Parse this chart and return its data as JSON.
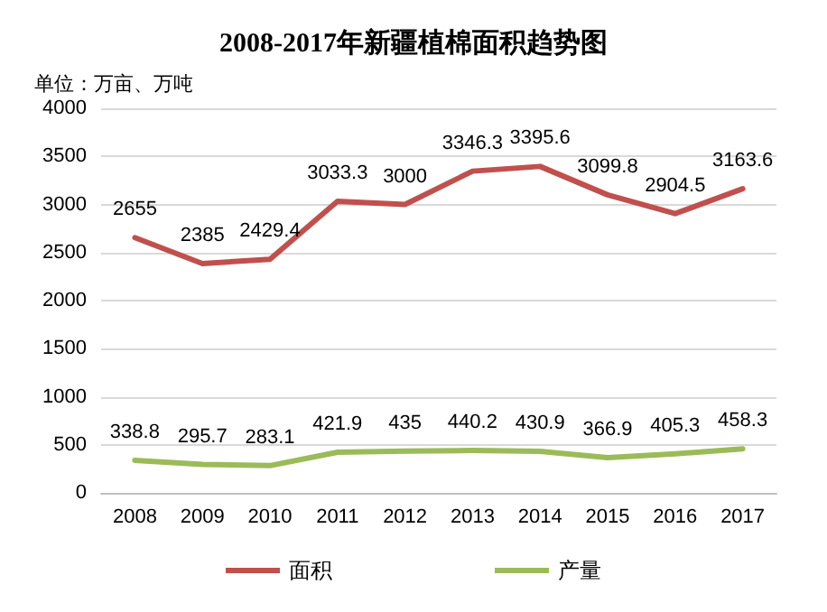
{
  "chart_data": {
    "type": "line",
    "title": "2008-2017年新疆植棉面积趋势图",
    "subtitle": "单位：万亩、万吨",
    "categories": [
      "2008",
      "2009",
      "2010",
      "2011",
      "2012",
      "2013",
      "2014",
      "2015",
      "2016",
      "2017"
    ],
    "series": [
      {
        "name": "面积",
        "color": "#c0504d",
        "values": [
          2655,
          2385,
          2429.4,
          3033.3,
          3000,
          3346.3,
          3395.6,
          3099.8,
          2904.5,
          3163.6
        ]
      },
      {
        "name": "产量",
        "color": "#9bbb59",
        "values": [
          338.8,
          295.7,
          283.1,
          421.9,
          435,
          440.2,
          430.9,
          366.9,
          405.3,
          458.3
        ]
      }
    ],
    "ylim": [
      0,
      4000
    ],
    "yticks": [
      0,
      500,
      1000,
      1500,
      2000,
      2500,
      3000,
      3500,
      4000
    ],
    "grid": "y",
    "legend": "bottom",
    "data_labels": true,
    "marker": "none",
    "line_style": "solid"
  }
}
